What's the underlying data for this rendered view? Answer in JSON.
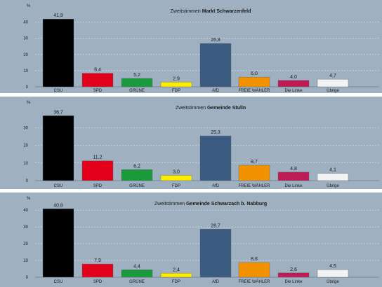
{
  "chart_data": [
    {
      "type": "bar",
      "title_prefix": "Zweitstimmen",
      "title_place": "Markt Schwarzenfeld",
      "ylabel": "%",
      "ylim": [
        0,
        45
      ],
      "yticks": [
        0,
        10,
        20,
        30,
        40
      ],
      "grid": true,
      "categories": [
        "CSU",
        "SPD",
        "GRÜNE",
        "FDP",
        "AfD",
        "FREIE WÄHLER",
        "Die Linke",
        "Übrige"
      ],
      "values": [
        41.9,
        8.4,
        5.2,
        2.9,
        26.8,
        6.0,
        4.0,
        4.7
      ],
      "labels": [
        "41,9",
        "8,4",
        "5,2",
        "2,9",
        "26,8",
        "6,0",
        "4,0",
        "4,7"
      ],
      "colors": [
        "#000000",
        "#e2001a",
        "#1a9a3a",
        "#ffed00",
        "#3a5a80",
        "#f39200",
        "#be1a54",
        "#f2f2f2"
      ]
    },
    {
      "type": "bar",
      "title_prefix": "Zweitstimmen",
      "title_place": "Gemeinde Stulln",
      "ylabel": "%",
      "ylim": [
        0,
        40
      ],
      "yticks": [
        0,
        10,
        20,
        30
      ],
      "grid": true,
      "categories": [
        "CSU",
        "SPD",
        "GRÜNE",
        "FDP",
        "AfD",
        "FREIE WÄHLER",
        "Die Linke",
        "Übrige"
      ],
      "values": [
        36.7,
        11.2,
        6.2,
        3.0,
        25.3,
        8.7,
        4.8,
        4.1
      ],
      "labels": [
        "36,7",
        "11,2",
        "6,2",
        "3,0",
        "25,3",
        "8,7",
        "4,8",
        "4,1"
      ],
      "colors": [
        "#000000",
        "#e2001a",
        "#1a9a3a",
        "#ffed00",
        "#3a5a80",
        "#f39200",
        "#be1a54",
        "#f2f2f2"
      ]
    },
    {
      "type": "bar",
      "title_prefix": "Zweitstimmen",
      "title_place": "Gemeinde Schwarzach b. Nabburg",
      "ylabel": "%",
      "ylim": [
        0,
        43
      ],
      "yticks": [
        0,
        10,
        20,
        30,
        40
      ],
      "grid": true,
      "categories": [
        "CSU",
        "SPD",
        "GRÜNE",
        "FDP",
        "AfD",
        "FREIE WÄHLER",
        "Die Linke",
        "Übrige"
      ],
      "values": [
        40.8,
        7.9,
        4.4,
        2.4,
        28.7,
        8.8,
        2.6,
        4.5
      ],
      "labels": [
        "40,8",
        "7,9",
        "4,4",
        "2,4",
        "28,7",
        "8,8",
        "2,6",
        "4,5"
      ],
      "colors": [
        "#000000",
        "#e2001a",
        "#1a9a3a",
        "#ffed00",
        "#3a5a80",
        "#f39200",
        "#be1a54",
        "#f2f2f2"
      ]
    }
  ]
}
